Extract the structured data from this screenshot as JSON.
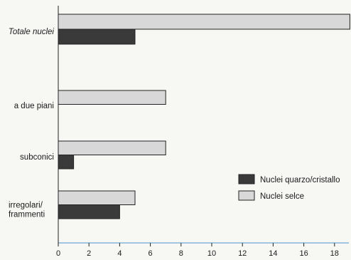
{
  "chart_data": {
    "type": "bar",
    "orientation": "horizontal",
    "categories": [
      "Totale nuclei",
      "a due piani",
      "subconici",
      "irregolari/\nframmenti"
    ],
    "series": [
      {
        "name": "Nuclei quarzo/cristallo",
        "values": [
          5,
          0,
          1,
          4
        ],
        "color": "#3a3a3a"
      },
      {
        "name": "Nuclei selce",
        "values": [
          19,
          7,
          7,
          5
        ],
        "color": "#d8d8d8"
      }
    ],
    "xlim": [
      0,
      19
    ],
    "xticks": [
      0,
      2,
      4,
      6,
      8,
      10,
      12,
      14,
      16,
      18
    ],
    "title": "",
    "xlabel": "",
    "ylabel": "",
    "legend_position": "right",
    "grid": false
  }
}
